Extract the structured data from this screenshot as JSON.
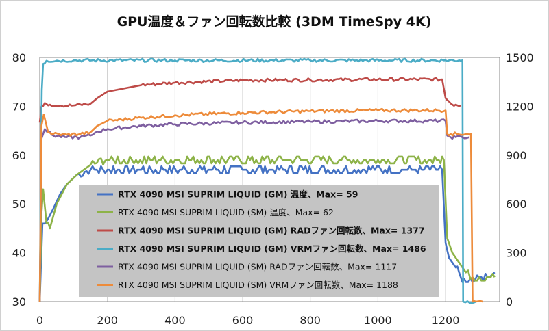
{
  "chart_data": {
    "type": "line",
    "title": "GPU温度＆ファン回転数比較 (3DM TimeSpy 4K)",
    "x_ticks": [
      "0",
      "200",
      "400",
      "600",
      "800",
      "1000",
      "1200"
    ],
    "y_left_ticks": [
      "30",
      "40",
      "50",
      "60",
      "70",
      "80"
    ],
    "y_right_ticks": [
      "0",
      "300",
      "600",
      "900",
      "1200",
      "1500"
    ],
    "xlim": [
      0,
      1360
    ],
    "ylim_left": [
      30,
      80
    ],
    "ylim_right": [
      0,
      1500
    ],
    "grid": "vertical",
    "legend_position": "center-left",
    "series": [
      {
        "name": "RTX 4090 MSI SUPRIM LIQUID (GM) 温度、Max= 59",
        "axis": "left",
        "color": "#4472C4",
        "bold": true,
        "x": [
          0,
          8,
          15,
          25,
          40,
          60,
          80,
          110,
          150,
          200,
          300,
          600,
          900,
          1100,
          1190,
          1200,
          1210,
          1230,
          1240,
          1250,
          1260,
          1280,
          1300,
          1330,
          1345
        ],
        "y": [
          30,
          46,
          46,
          47,
          49,
          52,
          54,
          56,
          57,
          57,
          57,
          57,
          57,
          57,
          57,
          42,
          39,
          37,
          36,
          34,
          34,
          34,
          35,
          35,
          36
        ]
      },
      {
        "name": "RTX 4090 MSI SUPRIM LIQUID (SM) 温度、Max= 62",
        "axis": "left",
        "color": "#8DB348",
        "bold": false,
        "x": [
          0,
          5,
          10,
          20,
          30,
          50,
          80,
          110,
          150,
          200,
          400,
          700,
          1000,
          1180,
          1195,
          1205,
          1220,
          1240,
          1260,
          1280,
          1300,
          1345
        ],
        "y": [
          30,
          48,
          53,
          46,
          45,
          50,
          54,
          56,
          58,
          59,
          59,
          59,
          59,
          59,
          59,
          43,
          40,
          38,
          36,
          35,
          35,
          35
        ]
      },
      {
        "name": "RTX 4090 MSI SUPRIM LIQUID (GM) RADファン回転数、Max= 1377",
        "axis": "right",
        "color": "#BE4B48",
        "bold": true,
        "x": [
          0,
          5,
          15,
          30,
          60,
          100,
          150,
          170,
          200,
          300,
          400,
          600,
          800,
          1000,
          1190,
          1200,
          1210,
          1220,
          1230,
          1245
        ],
        "y": [
          1100,
          1200,
          1220,
          1210,
          1205,
          1205,
          1215,
          1250,
          1290,
          1330,
          1345,
          1360,
          1362,
          1365,
          1365,
          1250,
          1230,
          1210,
          1210,
          1205
        ]
      },
      {
        "name": "RTX 4090 MSI SUPRIM LIQUID (GM) VRMファン回転数、Max= 1486",
        "axis": "right",
        "color": "#4BACC6",
        "bold": true,
        "x": [
          0,
          3,
          6,
          10,
          20,
          100,
          400,
          800,
          1200,
          1240,
          1250,
          1252,
          1290
        ],
        "y": [
          0,
          800,
          1300,
          1460,
          1480,
          1482,
          1482,
          1482,
          1482,
          1482,
          1482,
          0,
          0
        ]
      },
      {
        "name": "RTX 4090 MSI SUPRIM LIQUID (SM) RADファン回転数、Max= 1117",
        "axis": "right",
        "color": "#7E5FA0",
        "bold": false,
        "x": [
          0,
          5,
          15,
          25,
          40,
          80,
          120,
          150,
          170,
          200,
          300,
          400,
          600,
          800,
          1000,
          1200,
          1205,
          1215,
          1230,
          1250,
          1270
        ],
        "y": [
          0,
          1000,
          1060,
          1040,
          1020,
          1010,
          1010,
          1020,
          1045,
          1060,
          1080,
          1090,
          1100,
          1105,
          1110,
          1110,
          1020,
          1010,
          1010,
          1010,
          1010
        ]
      },
      {
        "name": "RTX 4090 MSI SUPRIM LIQUID (SM) VRMファン回転数、Max= 1188",
        "axis": "right",
        "color": "#ED8B3A",
        "bold": false,
        "x": [
          0,
          5,
          12,
          25,
          40,
          80,
          120,
          150,
          170,
          200,
          300,
          400,
          600,
          800,
          1000,
          1200,
          1205,
          1215,
          1265,
          1275,
          1280,
          1290,
          1310
        ],
        "y": [
          0,
          1080,
          1150,
          1040,
          1030,
          1025,
          1030,
          1040,
          1080,
          1110,
          1130,
          1145,
          1160,
          1170,
          1175,
          1175,
          1030,
          1030,
          1030,
          1030,
          0,
          0,
          0
        ]
      }
    ]
  }
}
